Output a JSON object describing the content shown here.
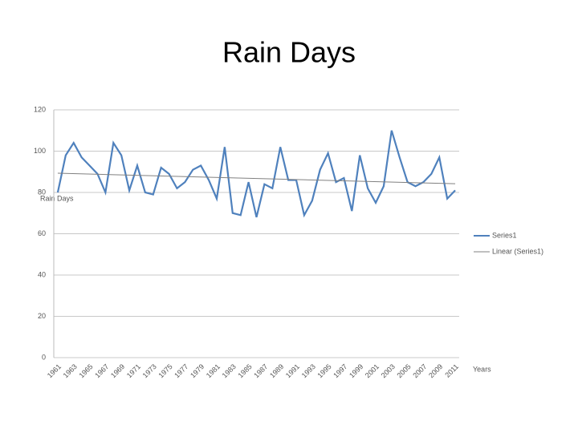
{
  "chart_data": {
    "type": "line",
    "title": "Rain Days",
    "y_label": "Rain Days",
    "x_label": "Years",
    "categories": [
      "1961",
      null,
      "1963",
      null,
      "1965",
      null,
      "1967",
      null,
      "1969",
      null,
      "1971",
      null,
      "1973",
      null,
      "1975",
      null,
      "1977",
      null,
      "1979",
      null,
      "1981",
      null,
      "1983",
      null,
      "1985",
      null,
      "1987",
      null,
      "1989",
      null,
      "1991",
      null,
      "1993",
      null,
      "1995",
      null,
      "1997",
      null,
      "1999",
      null,
      "2001",
      null,
      "2003",
      null,
      "2005",
      null,
      "2007",
      null,
      "2009",
      null,
      "2011"
    ],
    "series": [
      {
        "name": "Series1",
        "color": "#4f81bd",
        "values": [
          80,
          98,
          104,
          97,
          93,
          89,
          80,
          104,
          98,
          81,
          93,
          80,
          79,
          92,
          89,
          82,
          85,
          91,
          93,
          86,
          77,
          102,
          70,
          69,
          85,
          68,
          84,
          82,
          102,
          86,
          86,
          69,
          76,
          91,
          99,
          85,
          87,
          71,
          98,
          82,
          75,
          83,
          110,
          97,
          85,
          83,
          85,
          89,
          97,
          77,
          81
        ]
      }
    ],
    "trendline": {
      "name": "Linear (Series1)",
      "color": "#808080"
    },
    "ylim": [
      0,
      120
    ],
    "yticks": [
      0,
      20,
      40,
      60,
      80,
      100,
      120
    ],
    "grid": true,
    "legend": "right"
  }
}
